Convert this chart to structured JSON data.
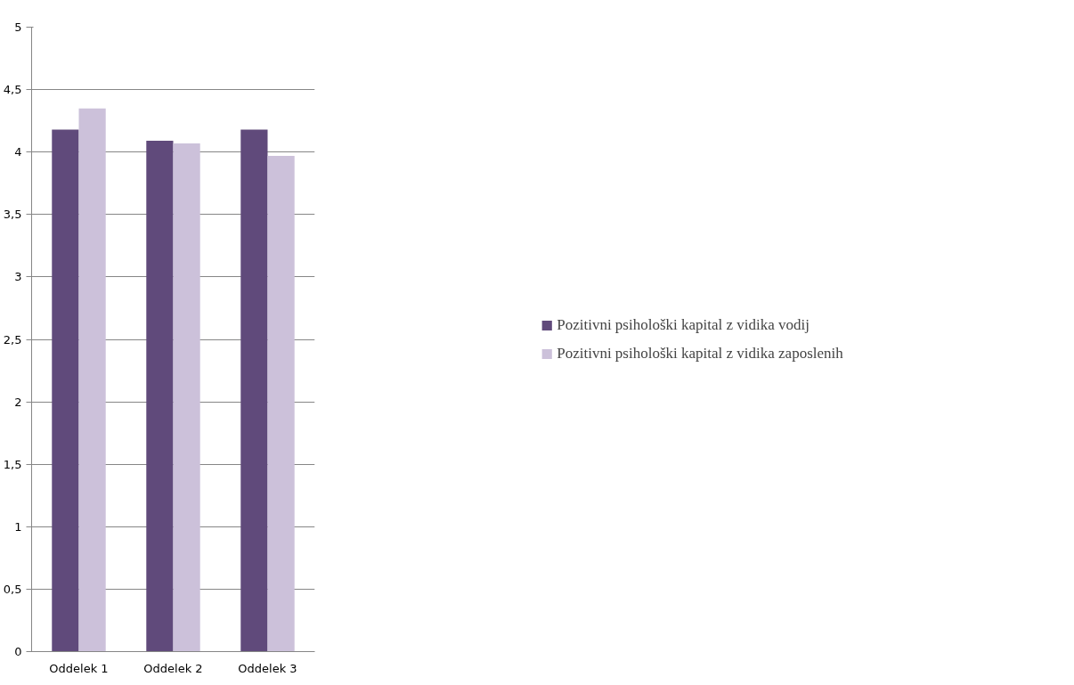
{
  "chart_data": {
    "type": "bar",
    "categories": [
      "Oddelek 1",
      "Oddelek 2",
      "Oddelek 3"
    ],
    "series": [
      {
        "name": "Pozitivni psihološki kapital z vidika vodij",
        "color": "#604a7b",
        "values": [
          4.18,
          4.09,
          4.18
        ]
      },
      {
        "name": "Pozitivni psihološki kapital z vidika zaposlenih",
        "color": "#ccc1da",
        "values": [
          4.35,
          4.07,
          3.97
        ]
      }
    ],
    "ylim": [
      0,
      5
    ],
    "yticks": [
      0,
      {
        "value": 0.5,
        "label": "0,5"
      },
      1,
      {
        "value": 1.5,
        "label": "1,5"
      },
      2,
      {
        "value": 2.5,
        "label": "2,5"
      },
      3,
      {
        "value": 3.5,
        "label": "3,5"
      },
      4,
      {
        "value": 4.5,
        "label": "4,5"
      },
      5
    ],
    "grid": "y",
    "legend": "right"
  }
}
